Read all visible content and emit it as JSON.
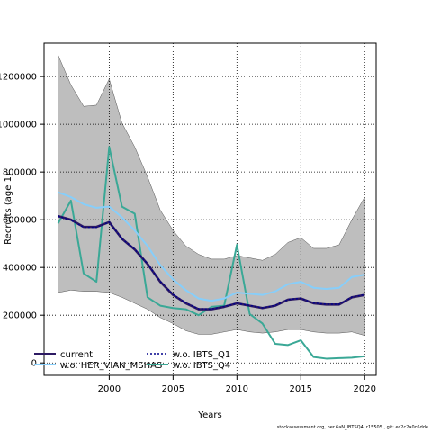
{
  "chart_data": {
    "type": "line",
    "title": "",
    "xlabel": "Years",
    "ylabel": "Recruits (age 1)",
    "xlim": [
      1994.9,
      2020.9
    ],
    "ylim": [
      -52000,
      1340000
    ],
    "x_ticks": [
      2000,
      2005,
      2010,
      2015,
      2020
    ],
    "y_ticks": [
      0,
      200000,
      400000,
      600000,
      800000,
      1000000,
      1200000
    ],
    "y_tick_labels": [
      "0",
      "200000",
      "400000",
      "600000",
      "800000",
      "1000000",
      "1200000"
    ],
    "grid": true,
    "legend_position": "bottom-left",
    "x": [
      1996,
      1997,
      1998,
      1999,
      2000,
      2001,
      2002,
      2003,
      2004,
      2005,
      2006,
      2007,
      2008,
      2009,
      2010,
      2011,
      2012,
      2013,
      2014,
      2015,
      2016,
      2017,
      2018,
      2019,
      2020
    ],
    "band": {
      "upper": [
        1290000,
        1165000,
        1075000,
        1080000,
        1190000,
        1005000,
        905000,
        780000,
        640000,
        555000,
        490000,
        455000,
        435000,
        435000,
        450000,
        440000,
        430000,
        455000,
        505000,
        525000,
        480000,
        480000,
        495000,
        600000,
        695000
      ],
      "lower": [
        295000,
        305000,
        300000,
        300000,
        295000,
        275000,
        250000,
        225000,
        190000,
        165000,
        135000,
        120000,
        120000,
        130000,
        140000,
        130000,
        125000,
        130000,
        140000,
        140000,
        130000,
        125000,
        125000,
        130000,
        115000
      ],
      "color": "#bebebe"
    },
    "series": [
      {
        "name": "current",
        "style": "solid",
        "color": "#2d1a63",
        "values": [
          615000,
          600000,
          570000,
          570000,
          590000,
          520000,
          475000,
          415000,
          340000,
          285000,
          250000,
          225000,
          225000,
          235000,
          250000,
          240000,
          230000,
          240000,
          265000,
          270000,
          250000,
          245000,
          245000,
          275000,
          285000
        ]
      },
      {
        "name": "w.o. HER_VIAN_MSHAS",
        "style": "solid",
        "color": "#87cefa",
        "values": [
          715000,
          695000,
          665000,
          650000,
          655000,
          610000,
          555000,
          490000,
          410000,
          350000,
          305000,
          270000,
          260000,
          270000,
          295000,
          290000,
          285000,
          300000,
          330000,
          340000,
          315000,
          310000,
          315000,
          360000,
          370000
        ]
      },
      {
        "name": "w.o. IBTS_Q1",
        "style": "dotted",
        "color": "#00008b",
        "values": [
          615000,
          598000,
          568000,
          568000,
          590000,
          520000,
          476000,
          415000,
          342000,
          287000,
          252000,
          227000,
          226000,
          237000,
          250000,
          241000,
          231000,
          241000,
          266000,
          271000,
          251000,
          246000,
          246000,
          276000,
          286000
        ]
      },
      {
        "name": "w.o. IBTS_Q4",
        "style": "solid",
        "color": "#3aa896",
        "values": [
          585000,
          680000,
          375000,
          340000,
          905000,
          655000,
          625000,
          275000,
          240000,
          230000,
          225000,
          200000,
          235000,
          240000,
          495000,
          205000,
          165000,
          80000,
          75000,
          95000,
          25000,
          18000,
          20000,
          22000,
          28000
        ]
      }
    ]
  },
  "footer_text": "stockassessment.org, her.6aN_IBTSQ4, r15505 , git: ec2c2a0c6dde"
}
